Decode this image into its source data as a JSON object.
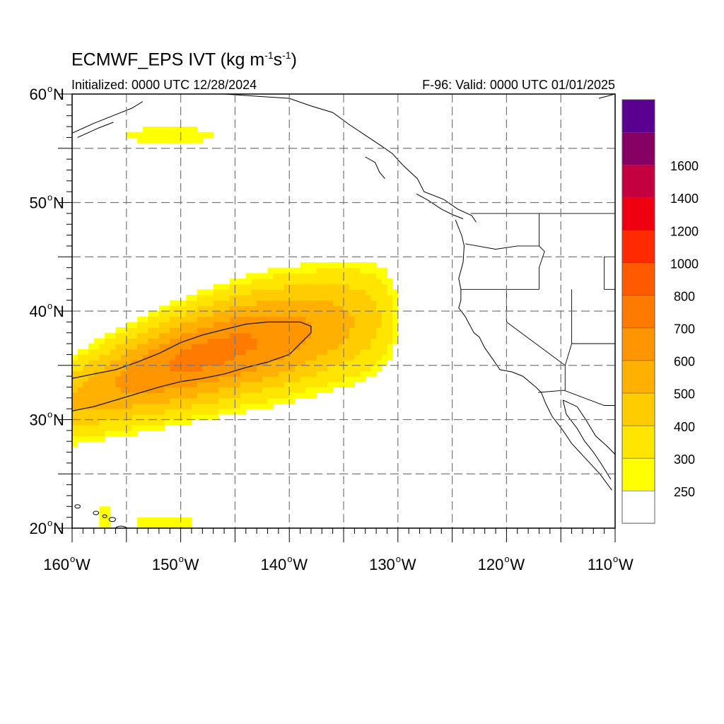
{
  "header": {
    "title_main": "ECMWF_EPS IVT (kg m",
    "title_sup1": "-1",
    "title_mid": "s",
    "title_sup2": "-1",
    "title_end": ")",
    "initialized": "Initialized: 0000 UTC 12/28/2024",
    "valid": "F-96: Valid: 0000 UTC 01/01/2025"
  },
  "map": {
    "extent": {
      "lon": [
        -160,
        -110
      ],
      "lat": [
        20,
        60
      ]
    },
    "grid_style": "dashed",
    "lat_labels": [
      "20",
      "30",
      "40",
      "50",
      "60"
    ],
    "lat_suffix": "N",
    "lon_labels": [
      "160",
      "150",
      "140",
      "130",
      "120",
      "110"
    ],
    "lon_suffix": "W"
  },
  "colorbar": {
    "labels": [
      "250",
      "300",
      "400",
      "500",
      "600",
      "700",
      "800",
      "1000",
      "1200",
      "1400",
      "1600"
    ],
    "colors": [
      "#ffffff",
      "#ffff00",
      "#ffe500",
      "#ffcc00",
      "#ffb000",
      "#ff9500",
      "#ff7a00",
      "#ff5a00",
      "#ff2a00",
      "#ee0010",
      "#c40040",
      "#850062",
      "#5a0090"
    ]
  }
}
